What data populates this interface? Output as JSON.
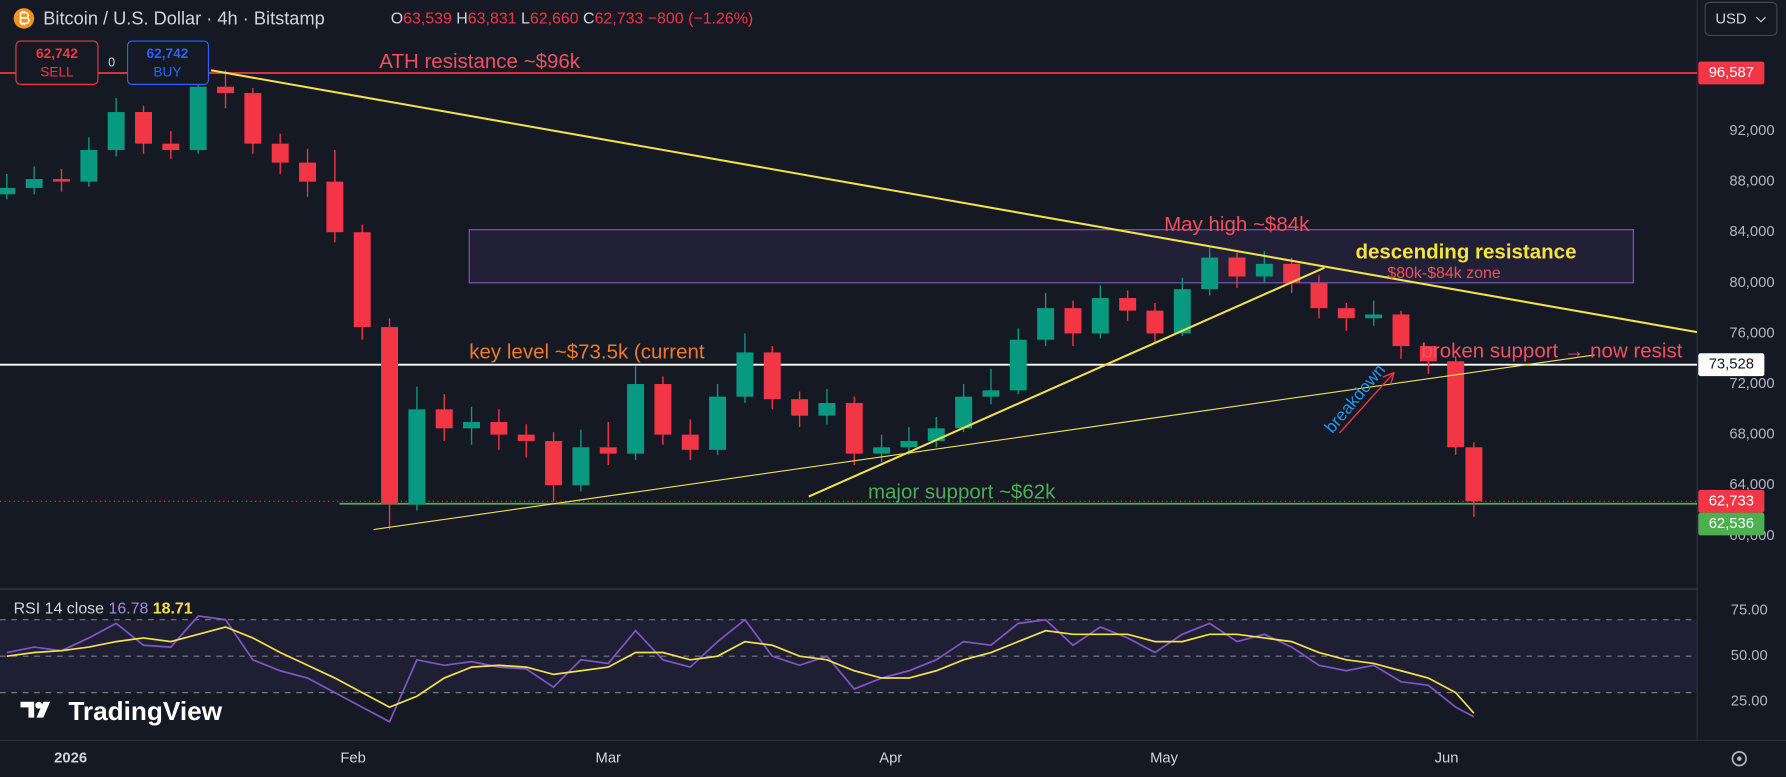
{
  "header": {
    "symbol": "Bitcoin / U.S. Dollar · 4h · Bitstamp",
    "ohlc": [
      {
        "key": "O",
        "value": "63,539"
      },
      {
        "key": "H",
        "value": "63,831"
      },
      {
        "key": "L",
        "value": "62,660"
      },
      {
        "key": "C",
        "value": "62,733"
      }
    ],
    "change": "−800 (−1.26%)"
  },
  "trade": {
    "sell_price": "62,742",
    "sell": "SELL",
    "spread": "0",
    "buy_price": "62,742",
    "buy": "BUY"
  },
  "currency": "USD",
  "branding": "TradingView",
  "chart_data": [
    {
      "type": "candlestick",
      "up_color": "#089981",
      "down_color": "#f23645",
      "x": [
        -7,
        -4,
        -1,
        2,
        5,
        8,
        11,
        14,
        17,
        20,
        23,
        26,
        29,
        32,
        35,
        38,
        41,
        44,
        47,
        50,
        53,
        56,
        59,
        62,
        65,
        68,
        71,
        74,
        77,
        80,
        83,
        86,
        89,
        92,
        95,
        98,
        101,
        104,
        107,
        110,
        113,
        116,
        119,
        122,
        125,
        128,
        131,
        134,
        137,
        140,
        143,
        146,
        149,
        152,
        154
      ],
      "open": [
        87000,
        87500,
        88200,
        88000,
        90500,
        93500,
        91000,
        90500,
        95500,
        95000,
        91000,
        89500,
        88000,
        84000,
        76500,
        62500,
        70000,
        68500,
        69000,
        68000,
        67500,
        64000,
        67000,
        66500,
        72000,
        68000,
        66800,
        71000,
        74500,
        70800,
        69500,
        70500,
        66500,
        67000,
        67500,
        68500,
        71000,
        71500,
        75500,
        78000,
        76000,
        78800,
        77800,
        76000,
        79500,
        82000,
        80500,
        81500,
        80000,
        78000,
        77200,
        77500,
        75000,
        73800,
        67000
      ],
      "high": [
        88600,
        89200,
        89000,
        91500,
        94600,
        94000,
        92000,
        97500,
        96800,
        95400,
        91800,
        90600,
        90500,
        84600,
        77200,
        71800,
        71200,
        70200,
        70000,
        68800,
        68200,
        68400,
        69000,
        73400,
        72600,
        69200,
        72000,
        76000,
        75000,
        71400,
        71600,
        71000,
        68000,
        68600,
        69400,
        72000,
        73200,
        76400,
        79200,
        78600,
        79800,
        79400,
        78400,
        80400,
        82800,
        82400,
        82500,
        82000,
        80600,
        78400,
        78600,
        77800,
        75000,
        74200,
        67400
      ],
      "low": [
        86600,
        87000,
        87200,
        87600,
        90000,
        90200,
        89800,
        90200,
        93800,
        90200,
        88600,
        86800,
        83200,
        75500,
        60500,
        62000,
        67500,
        67200,
        66800,
        66200,
        62700,
        63500,
        65600,
        66000,
        67200,
        66000,
        66400,
        70500,
        70000,
        68600,
        68800,
        65600,
        65800,
        66400,
        67000,
        68200,
        70400,
        71200,
        75000,
        75000,
        75600,
        77000,
        75200,
        75800,
        79000,
        79600,
        80000,
        79200,
        77200,
        76200,
        76600,
        74000,
        72800,
        66400,
        61500
      ],
      "close": [
        87500,
        88200,
        88000,
        90500,
        93500,
        91000,
        90500,
        95500,
        95000,
        91000,
        89500,
        88000,
        84000,
        76500,
        62500,
        70000,
        68500,
        69000,
        68000,
        67500,
        64000,
        67000,
        66500,
        72000,
        68000,
        66800,
        71000,
        74500,
        70800,
        69500,
        70500,
        66500,
        67000,
        67500,
        68500,
        71000,
        71500,
        75500,
        78000,
        76000,
        78800,
        77800,
        76000,
        79500,
        82000,
        80500,
        81500,
        80000,
        78000,
        77200,
        77500,
        75000,
        73800,
        67000,
        62733
      ],
      "xlim": [
        -7.75,
        178.5
      ],
      "xticks": [
        {
          "value": 0,
          "label": "2026"
        },
        {
          "value": 31,
          "label": "Feb"
        },
        {
          "value": 59,
          "label": "Mar"
        },
        {
          "value": 90,
          "label": "Apr"
        },
        {
          "value": 120,
          "label": "May"
        },
        {
          "value": 151,
          "label": "Jun"
        }
      ],
      "ylim": [
        55980,
        102350
      ],
      "yticks": [
        {
          "value": 60000,
          "label": "60,000"
        },
        {
          "value": 64000,
          "label": "64,000"
        },
        {
          "value": 68000,
          "label": "68,000"
        },
        {
          "value": 72000,
          "label": "72,000"
        },
        {
          "value": 76000,
          "label": "76,000"
        },
        {
          "value": 80000,
          "label": "80,000"
        },
        {
          "value": 84000,
          "label": "84,000"
        },
        {
          "value": 88000,
          "label": "88,000"
        },
        {
          "value": 92000,
          "label": "92,000"
        }
      ],
      "levels": [
        {
          "value": 96587,
          "label": "96,587",
          "color": "#f23645",
          "label_color": "#ffffff",
          "style": "solid"
        },
        {
          "value": 73528,
          "label": "73,528",
          "color": "#ffffff",
          "label_color": "#131722",
          "style": "solid"
        },
        {
          "value": 62733,
          "label": "62,733",
          "color": "#f23645",
          "label_color": "#ffffff",
          "style": "dotted"
        },
        {
          "value": 62536,
          "label": "62,536",
          "color": "#4caf50",
          "label_color": "#ffffff",
          "style": "solid",
          "x_start": 29.5
        }
      ],
      "zone": {
        "x": [
          43.75,
          171.5
        ],
        "y": [
          80000,
          84200
        ],
        "color": "#7e57c2"
      },
      "drawings": [
        {
          "x": [
            15.4,
            178.5
          ],
          "y": [
            96800,
            76100
          ],
          "color": "#f2e14c",
          "width": 1.8
        },
        {
          "x": [
            33.25,
            167.25
          ],
          "y": [
            60500,
            74300
          ],
          "color": "#f2e14c",
          "width": 1
        },
        {
          "x": [
            81,
            137.6
          ],
          "y": [
            63100,
            81200
          ],
          "color": "#f2e14c",
          "width": 1.8
        }
      ],
      "annotations": [
        "ATH resistance ~$96k",
        "May high ~$84k",
        "descending resistance",
        "$80k-$84k zone",
        "key level ~$73.5k (current",
        "broken support → now resist",
        "breakdown",
        "major support ~$62k"
      ]
    },
    {
      "type": "line",
      "title": "RSI 14 close",
      "series": [
        {
          "color": "#7e57c2",
          "values": [
            52,
            55,
            53,
            60,
            68,
            56,
            55,
            72,
            70,
            48,
            42,
            38,
            30,
            22,
            14,
            48,
            45,
            47,
            44,
            43,
            33,
            48,
            46,
            64,
            48,
            44,
            58,
            70,
            50,
            45,
            50,
            32,
            38,
            42,
            48,
            58,
            56,
            68,
            70,
            56,
            66,
            60,
            52,
            62,
            68,
            58,
            62,
            55,
            45,
            42,
            45,
            36,
            34,
            22,
            16.78
          ]
        },
        {
          "color": "#f2e14c",
          "values": [
            50,
            52,
            53,
            55,
            58,
            60,
            58,
            62,
            66,
            60,
            52,
            45,
            38,
            30,
            22,
            28,
            38,
            44,
            45,
            44,
            40,
            42,
            44,
            52,
            52,
            48,
            50,
            58,
            56,
            50,
            48,
            42,
            38,
            38,
            42,
            48,
            52,
            58,
            64,
            62,
            62,
            62,
            58,
            58,
            62,
            62,
            60,
            58,
            52,
            48,
            46,
            42,
            38,
            30,
            18.71
          ]
        }
      ],
      "ylim": [
        3.75,
        86.25
      ],
      "yticks": [
        {
          "value": 75,
          "label": "75.00"
        },
        {
          "value": 50,
          "label": "50.00"
        },
        {
          "value": 25,
          "label": "25.00"
        }
      ],
      "levels": [
        70,
        50,
        30
      ],
      "band_color": "#7e57c2"
    }
  ]
}
